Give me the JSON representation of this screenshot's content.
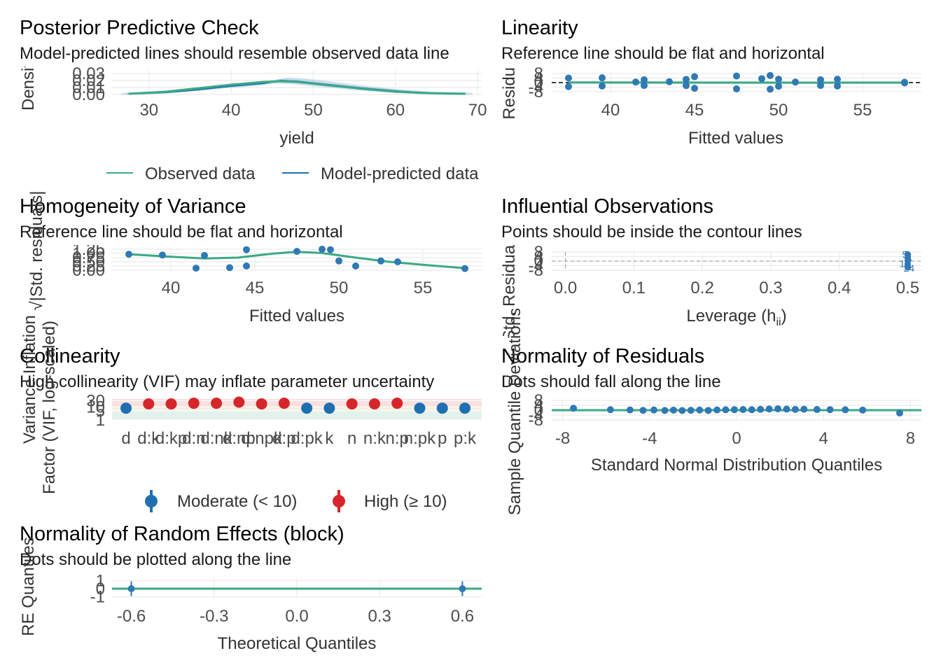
{
  "colors": {
    "observed": "#3aaa85",
    "predicted": "#1f6fb0",
    "points": "#2f79b5",
    "moderate": "#1f6fb0",
    "high": "#d7262b",
    "reference": "#3aaa85",
    "grid": "#ebebeb",
    "band_low": "#e3f1ec",
    "band_high": "#f8e0e0"
  },
  "chart_data": [
    {
      "id": "ppc",
      "type": "line",
      "title": "Posterior Predictive Check",
      "subtitle": "Model-predicted lines should resemble observed data line",
      "xlabel": "yield",
      "ylabel": "Density",
      "xlim": [
        25.5,
        70.5
      ],
      "ylim": [
        0,
        0.035
      ],
      "x_ticks": [
        "30",
        "40",
        "50",
        "60",
        "70"
      ],
      "y_ticks": [
        "0.00",
        "0.01",
        "0.02",
        "0.03"
      ],
      "legend_position": "bottom",
      "legend": [
        "Observed data",
        "Model-predicted data"
      ],
      "grid": true,
      "x": [
        27.5,
        32,
        36,
        40,
        44,
        46,
        48,
        52,
        56,
        60,
        64,
        68.5
      ],
      "series": [
        {
          "name": "Observed data",
          "values": [
            0.001,
            0.004,
            0.009,
            0.014,
            0.018,
            0.019,
            0.018,
            0.013,
            0.008,
            0.004,
            0.002,
            0.001
          ]
        },
        {
          "name": "Model-predicted data",
          "values": [
            0.001,
            0.003,
            0.007,
            0.012,
            0.016,
            0.02,
            0.019,
            0.014,
            0.009,
            0.005,
            0.002,
            0.001
          ]
        }
      ]
    },
    {
      "id": "linearity",
      "type": "scatter",
      "title": "Linearity",
      "subtitle": "Reference line should be flat and horizontal",
      "xlabel": "Fitted values",
      "ylabel": "Residuals",
      "xlim": [
        36.5,
        58.5
      ],
      "ylim": [
        -8,
        8
      ],
      "x_ticks": [
        "40",
        "45",
        "50",
        "55"
      ],
      "y_ticks": [
        "-8",
        "-4",
        "0",
        "4",
        "8"
      ],
      "grid": true,
      "points": [
        [
          37.5,
          4.0
        ],
        [
          37.5,
          -3.5
        ],
        [
          39.5,
          4.2
        ],
        [
          39.5,
          -3.0
        ],
        [
          41.5,
          0.5
        ],
        [
          42,
          2.5
        ],
        [
          42,
          -2.5
        ],
        [
          43.5,
          0.8
        ],
        [
          44.5,
          2.8
        ],
        [
          44.5,
          -2.6
        ],
        [
          45,
          5.2
        ],
        [
          45,
          -5.0
        ],
        [
          47.5,
          5.8
        ],
        [
          47.5,
          -5.5
        ],
        [
          49,
          3.5
        ],
        [
          49.5,
          6.2
        ],
        [
          49.5,
          -5.8
        ],
        [
          50,
          3.0
        ],
        [
          50,
          -3.2
        ],
        [
          51,
          0.5
        ],
        [
          52.5,
          2.5
        ],
        [
          52.5,
          -2.5
        ],
        [
          53.5,
          3.0
        ],
        [
          53.5,
          -3.0
        ],
        [
          57.5,
          0.3
        ],
        [
          57.5,
          -0.3
        ]
      ],
      "reference_line": [
        [
          37.5,
          0.1
        ],
        [
          42,
          0.05
        ],
        [
          47,
          0.0
        ],
        [
          52,
          -0.05
        ],
        [
          57.5,
          0.0
        ]
      ]
    },
    {
      "id": "homogeneity",
      "type": "scatter",
      "title": "Homogeneity of Variance",
      "subtitle": "Reference line should be flat and horizontal",
      "xlabel": "Fitted values",
      "ylabel": "√|Std. residuals|",
      "xlim": [
        36.5,
        58.5
      ],
      "ylim": [
        0,
        1.25
      ],
      "x_ticks": [
        "40",
        "45",
        "50",
        "55"
      ],
      "y_ticks": [
        "0.00",
        "0.25",
        "0.50",
        "0.75",
        "1.00",
        "1.25"
      ],
      "grid": true,
      "points": [
        [
          37.5,
          0.95
        ],
        [
          39.5,
          0.9
        ],
        [
          41.5,
          0.12
        ],
        [
          42,
          0.88
        ],
        [
          43.5,
          0.15
        ],
        [
          44.5,
          0.25
        ],
        [
          44.5,
          1.22
        ],
        [
          47.5,
          1.12
        ],
        [
          49,
          1.25
        ],
        [
          49.5,
          1.22
        ],
        [
          50,
          0.55
        ],
        [
          51,
          0.25
        ],
        [
          52.5,
          0.55
        ],
        [
          53.5,
          0.5
        ],
        [
          57.5,
          0.1
        ]
      ],
      "reference_line": [
        [
          37.5,
          0.95
        ],
        [
          40,
          0.8
        ],
        [
          42,
          0.7
        ],
        [
          44,
          0.75
        ],
        [
          46,
          0.98
        ],
        [
          47.5,
          1.1
        ],
        [
          49,
          1.02
        ],
        [
          51,
          0.75
        ],
        [
          53,
          0.5
        ],
        [
          55,
          0.32
        ],
        [
          57.5,
          0.12
        ]
      ]
    },
    {
      "id": "influential",
      "type": "scatter",
      "title": "Influential Observations",
      "subtitle": "Points should be inside the contour lines",
      "xlabel": "Leverage (h",
      "xlabel_sub": "ii",
      "xlabel_end": ")",
      "ylabel": "Std. Residuals",
      "xlim": [
        -0.02,
        0.52
      ],
      "ylim": [
        -8,
        8
      ],
      "x_ticks": [
        "0.0",
        "0.1",
        "0.2",
        "0.3",
        "0.4",
        "0.5"
      ],
      "y_ticks": [
        "-8",
        "-4",
        "0",
        "4",
        "8"
      ],
      "grid": true,
      "point_labels": [
        "5",
        "6",
        "19",
        "24"
      ],
      "points": [
        [
          0.5,
          6.0
        ],
        [
          0.5,
          3.0
        ],
        [
          0.5,
          0.5
        ],
        [
          0.5,
          -2.5
        ],
        [
          0.5,
          -5.5
        ],
        [
          0.5,
          5.2
        ],
        [
          0.5,
          -4.8
        ]
      ]
    },
    {
      "id": "collinearity",
      "type": "scatter",
      "title": "Collinearity",
      "subtitle": "High collinearity (VIF) may inflate parameter uncertainty",
      "xlabel": "",
      "ylabel": "Variance Inflation\nFactor (VIF, log-scaled)",
      "y_ticks": [
        "1",
        "5",
        "10",
        "30"
      ],
      "ylim": [
        1,
        40
      ],
      "categories": [
        "d",
        "d:k",
        "d:kp",
        "d:n",
        "d:nk",
        "d:np",
        "d:npk",
        "d:p",
        "d:pk",
        "k",
        "n",
        "n:k",
        "n:p",
        "n:pk",
        "p",
        "p:k"
      ],
      "vif": [
        8,
        17,
        17,
        19,
        19,
        23,
        17,
        19,
        8,
        8,
        17,
        17,
        19,
        8,
        8,
        8
      ],
      "legend_position": "bottom",
      "legend": [
        "Moderate (< 10)",
        "High (≥ 10)"
      ],
      "grid": true
    },
    {
      "id": "normality_resid",
      "type": "scatter",
      "title": "Normality of Residuals",
      "subtitle": "Dots should fall along the line",
      "xlabel": "Standard Normal Distribution Quantiles",
      "ylabel": "Sample Quantile Deviations",
      "xlim": [
        -8.5,
        8.5
      ],
      "ylim": [
        -8,
        8
      ],
      "x_ticks": [
        "-8",
        "-4",
        "0",
        "4",
        "8"
      ],
      "y_ticks": [
        "-8",
        "-4",
        "0",
        "4",
        "8"
      ],
      "grid": true,
      "points": [
        [
          -7.5,
          3.5
        ],
        [
          -5.8,
          1.0
        ],
        [
          -4.9,
          0.5
        ],
        [
          -4.3,
          -0.3
        ],
        [
          -3.8,
          0.4
        ],
        [
          -3.3,
          -0.5
        ],
        [
          -2.9,
          0.2
        ],
        [
          -2.5,
          -0.6
        ],
        [
          -2.1,
          -0.2
        ],
        [
          -1.7,
          0.3
        ],
        [
          -1.3,
          -0.4
        ],
        [
          -0.9,
          0.5
        ],
        [
          -0.5,
          0.8
        ],
        [
          -0.1,
          1.0
        ],
        [
          0.3,
          1.2
        ],
        [
          0.7,
          0.9
        ],
        [
          1.1,
          1.6
        ],
        [
          1.5,
          2.2
        ],
        [
          1.9,
          2.6
        ],
        [
          2.3,
          2.0
        ],
        [
          2.7,
          1.5
        ],
        [
          3.1,
          1.8
        ],
        [
          3.7,
          1.2
        ],
        [
          4.3,
          1.0
        ],
        [
          5.0,
          0.8
        ],
        [
          5.8,
          0.2
        ],
        [
          7.5,
          -5.0
        ]
      ],
      "reference_line": [
        [
          -8.5,
          0
        ],
        [
          8.5,
          0
        ]
      ]
    },
    {
      "id": "normality_re",
      "type": "scatter",
      "title": "Normality of Random Effects (block)",
      "subtitle": "Dots should be plotted along the line",
      "xlabel": "Theoretical Quantiles",
      "ylabel": "RE Quantiles",
      "xlim": [
        -0.67,
        0.67
      ],
      "ylim": [
        -1.2,
        1.2
      ],
      "x_ticks": [
        "-0.6",
        "-0.3",
        "0.0",
        "0.3",
        "0.6"
      ],
      "y_ticks": [
        "-1",
        "0",
        "1"
      ],
      "grid": true,
      "points": [
        [
          -0.6,
          0
        ],
        [
          0.6,
          0
        ]
      ],
      "reference_line": [
        [
          -0.67,
          0
        ],
        [
          0.67,
          0
        ]
      ]
    }
  ]
}
